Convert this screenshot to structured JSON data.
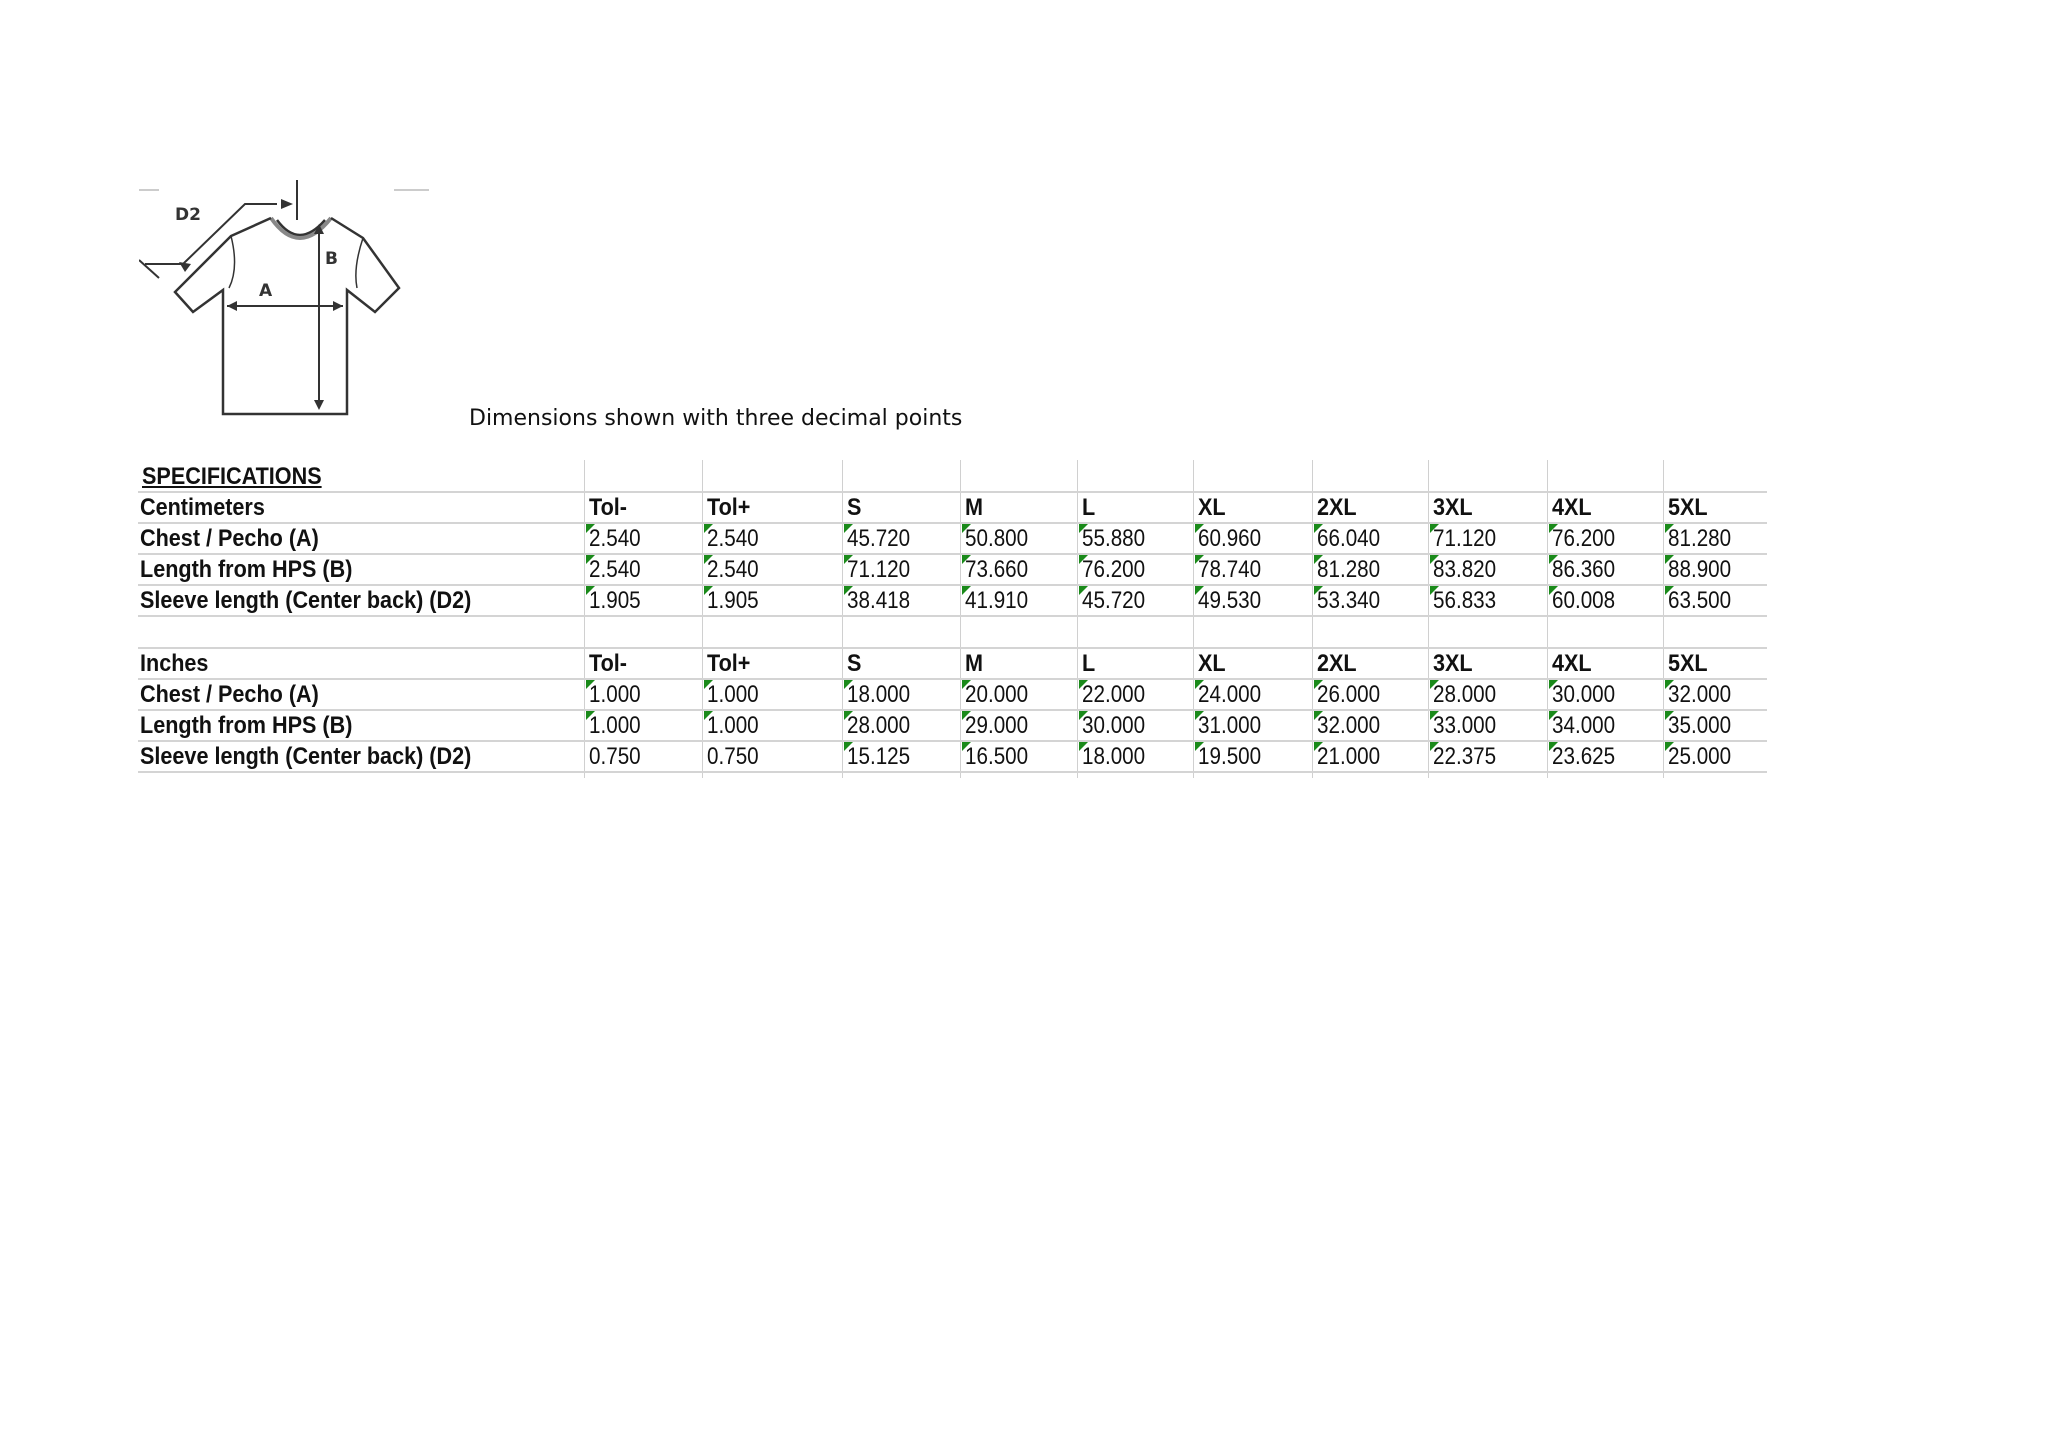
{
  "note": "Dimensions shown with three decimal points",
  "diagram_labels": {
    "d2": "D2",
    "a": "A",
    "b": "B"
  },
  "title": "SPECIFICATIONS",
  "columns": [
    "Tol-",
    "Tol+",
    "S",
    "M",
    "L",
    "XL",
    "2XL",
    "3XL",
    "4XL",
    "5XL"
  ],
  "marker_color": "#1a8a1a",
  "sections": [
    {
      "unit": "Centimeters",
      "rows": [
        {
          "label": "Chest / Pecho (A)",
          "values": [
            "2.540",
            "2.540",
            "45.720",
            "50.800",
            "55.880",
            "60.960",
            "66.040",
            "71.120",
            "76.200",
            "81.280"
          ],
          "flagged": [
            true,
            true,
            true,
            true,
            true,
            true,
            true,
            true,
            true,
            true
          ]
        },
        {
          "label": "Length from HPS (B)",
          "values": [
            "2.540",
            "2.540",
            "71.120",
            "73.660",
            "76.200",
            "78.740",
            "81.280",
            "83.820",
            "86.360",
            "88.900"
          ],
          "flagged": [
            true,
            true,
            true,
            true,
            true,
            true,
            true,
            true,
            true,
            true
          ]
        },
        {
          "label": "Sleeve length (Center back) (D2)",
          "values": [
            "1.905",
            "1.905",
            "38.418",
            "41.910",
            "45.720",
            "49.530",
            "53.340",
            "56.833",
            "60.008",
            "63.500"
          ],
          "flagged": [
            true,
            true,
            true,
            true,
            true,
            true,
            true,
            true,
            true,
            true
          ]
        }
      ]
    },
    {
      "unit": "Inches",
      "rows": [
        {
          "label": "Chest / Pecho (A)",
          "values": [
            "1.000",
            "1.000",
            "18.000",
            "20.000",
            "22.000",
            "24.000",
            "26.000",
            "28.000",
            "30.000",
            "32.000"
          ],
          "flagged": [
            true,
            true,
            true,
            true,
            true,
            true,
            true,
            true,
            true,
            true
          ]
        },
        {
          "label": "Length from HPS (B)",
          "values": [
            "1.000",
            "1.000",
            "28.000",
            "29.000",
            "30.000",
            "31.000",
            "32.000",
            "33.000",
            "34.000",
            "35.000"
          ],
          "flagged": [
            true,
            true,
            true,
            true,
            true,
            true,
            true,
            true,
            true,
            true
          ]
        },
        {
          "label": "Sleeve length (Center back) (D2)",
          "values": [
            "0.750",
            "0.750",
            "15.125",
            "16.500",
            "18.000",
            "19.500",
            "21.000",
            "22.375",
            "23.625",
            "25.000"
          ],
          "flagged": [
            false,
            false,
            true,
            true,
            true,
            true,
            true,
            true,
            true,
            true
          ]
        }
      ]
    }
  ]
}
